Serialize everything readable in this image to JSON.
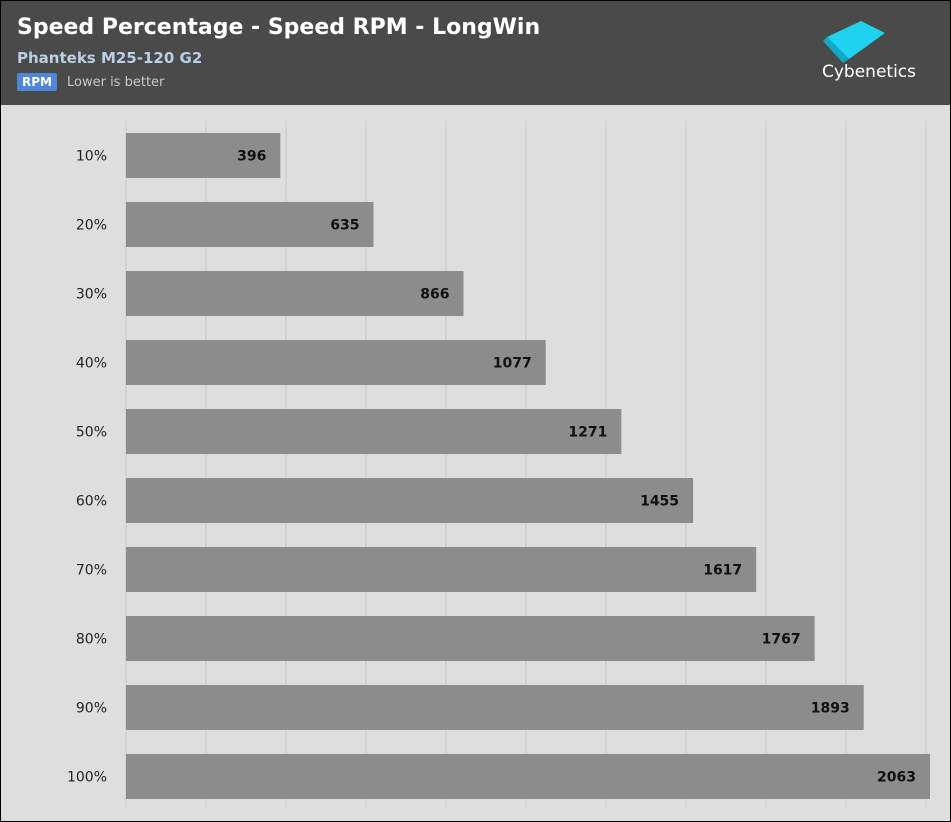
{
  "chart_data": {
    "type": "bar",
    "orientation": "horizontal",
    "title": "Speed Percentage - Speed RPM - LongWin",
    "subtitle": "Phanteks M25-120 G2",
    "unit_badge": "RPM",
    "note": "Lower is better",
    "categories": [
      "10%",
      "20%",
      "30%",
      "40%",
      "50%",
      "60%",
      "70%",
      "80%",
      "90%",
      "100%"
    ],
    "values": [
      396,
      635,
      866,
      1077,
      1271,
      1455,
      1617,
      1767,
      1893,
      2063
    ],
    "xlim": [
      0,
      2063
    ],
    "grid": true,
    "colors": {
      "bar": "#8c8c8c",
      "grid": "#c8c8c8",
      "header": "#4a4a4a",
      "plot_bg": "#dedede",
      "badge": "#4f86d6",
      "subtitle": "#b9cfe6"
    }
  },
  "brand": {
    "logo_text": "Cybenetics",
    "logo_icon": "cybenetics-cube-icon"
  }
}
